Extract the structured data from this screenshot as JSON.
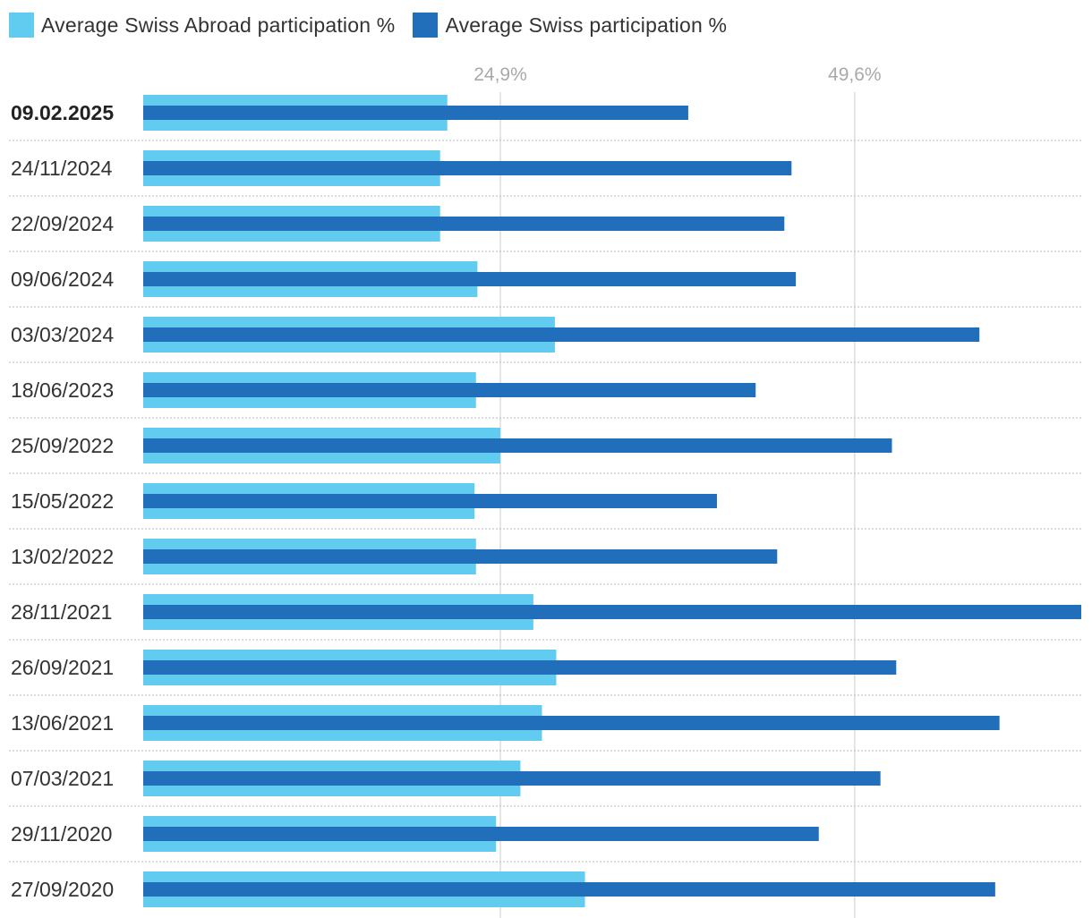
{
  "colors": {
    "abroad": "#62ccf0",
    "swiss": "#216fba",
    "gridline": "#dddddd",
    "separator": "#c6c6c6"
  },
  "legend": {
    "abroad_label": "Average Swiss Abroad participation %",
    "swiss_label": "Average Swiss participation %"
  },
  "chart_data": {
    "type": "bar",
    "orientation": "horizontal",
    "title": "",
    "xlabel": "",
    "ylabel": "",
    "xlim": [
      0,
      65.4
    ],
    "ticks": [
      {
        "value": 24.9,
        "label": "24,9%"
      },
      {
        "value": 49.6,
        "label": "49,6%"
      }
    ],
    "categories": [
      "09.02.2025",
      "24/11/2024",
      "22/09/2024",
      "09/06/2024",
      "03/03/2024",
      "18/06/2023",
      "25/09/2022",
      "15/05/2022",
      "13/02/2022",
      "28/11/2021",
      "26/09/2021",
      "13/06/2021",
      "07/03/2021",
      "29/11/2020",
      "27/09/2020"
    ],
    "series": [
      {
        "name": "Average Swiss Abroad participation %",
        "values": [
          21.2,
          20.7,
          20.7,
          23.3,
          28.7,
          23.2,
          24.9,
          23.1,
          23.2,
          27.2,
          28.8,
          27.8,
          26.3,
          24.6,
          30.8
        ]
      },
      {
        "name": "Average Swiss participation %",
        "values": [
          38.0,
          45.2,
          44.7,
          45.5,
          58.3,
          42.7,
          52.2,
          40.0,
          44.2,
          65.4,
          52.5,
          59.7,
          51.4,
          47.1,
          59.4
        ]
      }
    ]
  }
}
